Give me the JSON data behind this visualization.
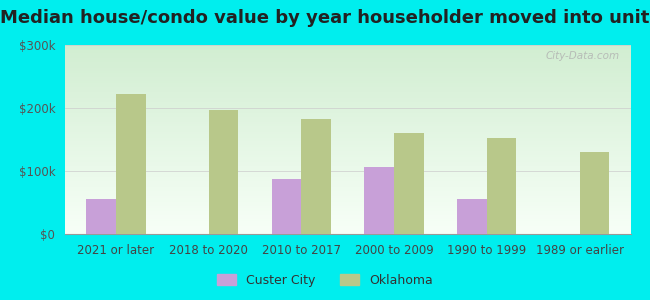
{
  "title": "Median house/condo value by year householder moved into unit",
  "categories": [
    "2021 or later",
    "2018 to 2020",
    "2010 to 2017",
    "2000 to 2009",
    "1990 to 1999",
    "1989 or earlier"
  ],
  "custer_city": [
    55000,
    0,
    88000,
    107000,
    55000,
    0
  ],
  "oklahoma": [
    222000,
    197000,
    183000,
    160000,
    153000,
    130000
  ],
  "custer_color": "#c8a0d8",
  "oklahoma_color": "#b8c88a",
  "background_color": "#00eeee",
  "ylim": [
    0,
    300000
  ],
  "yticks": [
    0,
    100000,
    200000,
    300000
  ],
  "ytick_labels": [
    "$0",
    "$100k",
    "$200k",
    "$300k"
  ],
  "bar_width": 0.32,
  "title_fontsize": 13,
  "tick_fontsize": 8.5,
  "legend_fontsize": 9,
  "watermark": "City-Data.com"
}
